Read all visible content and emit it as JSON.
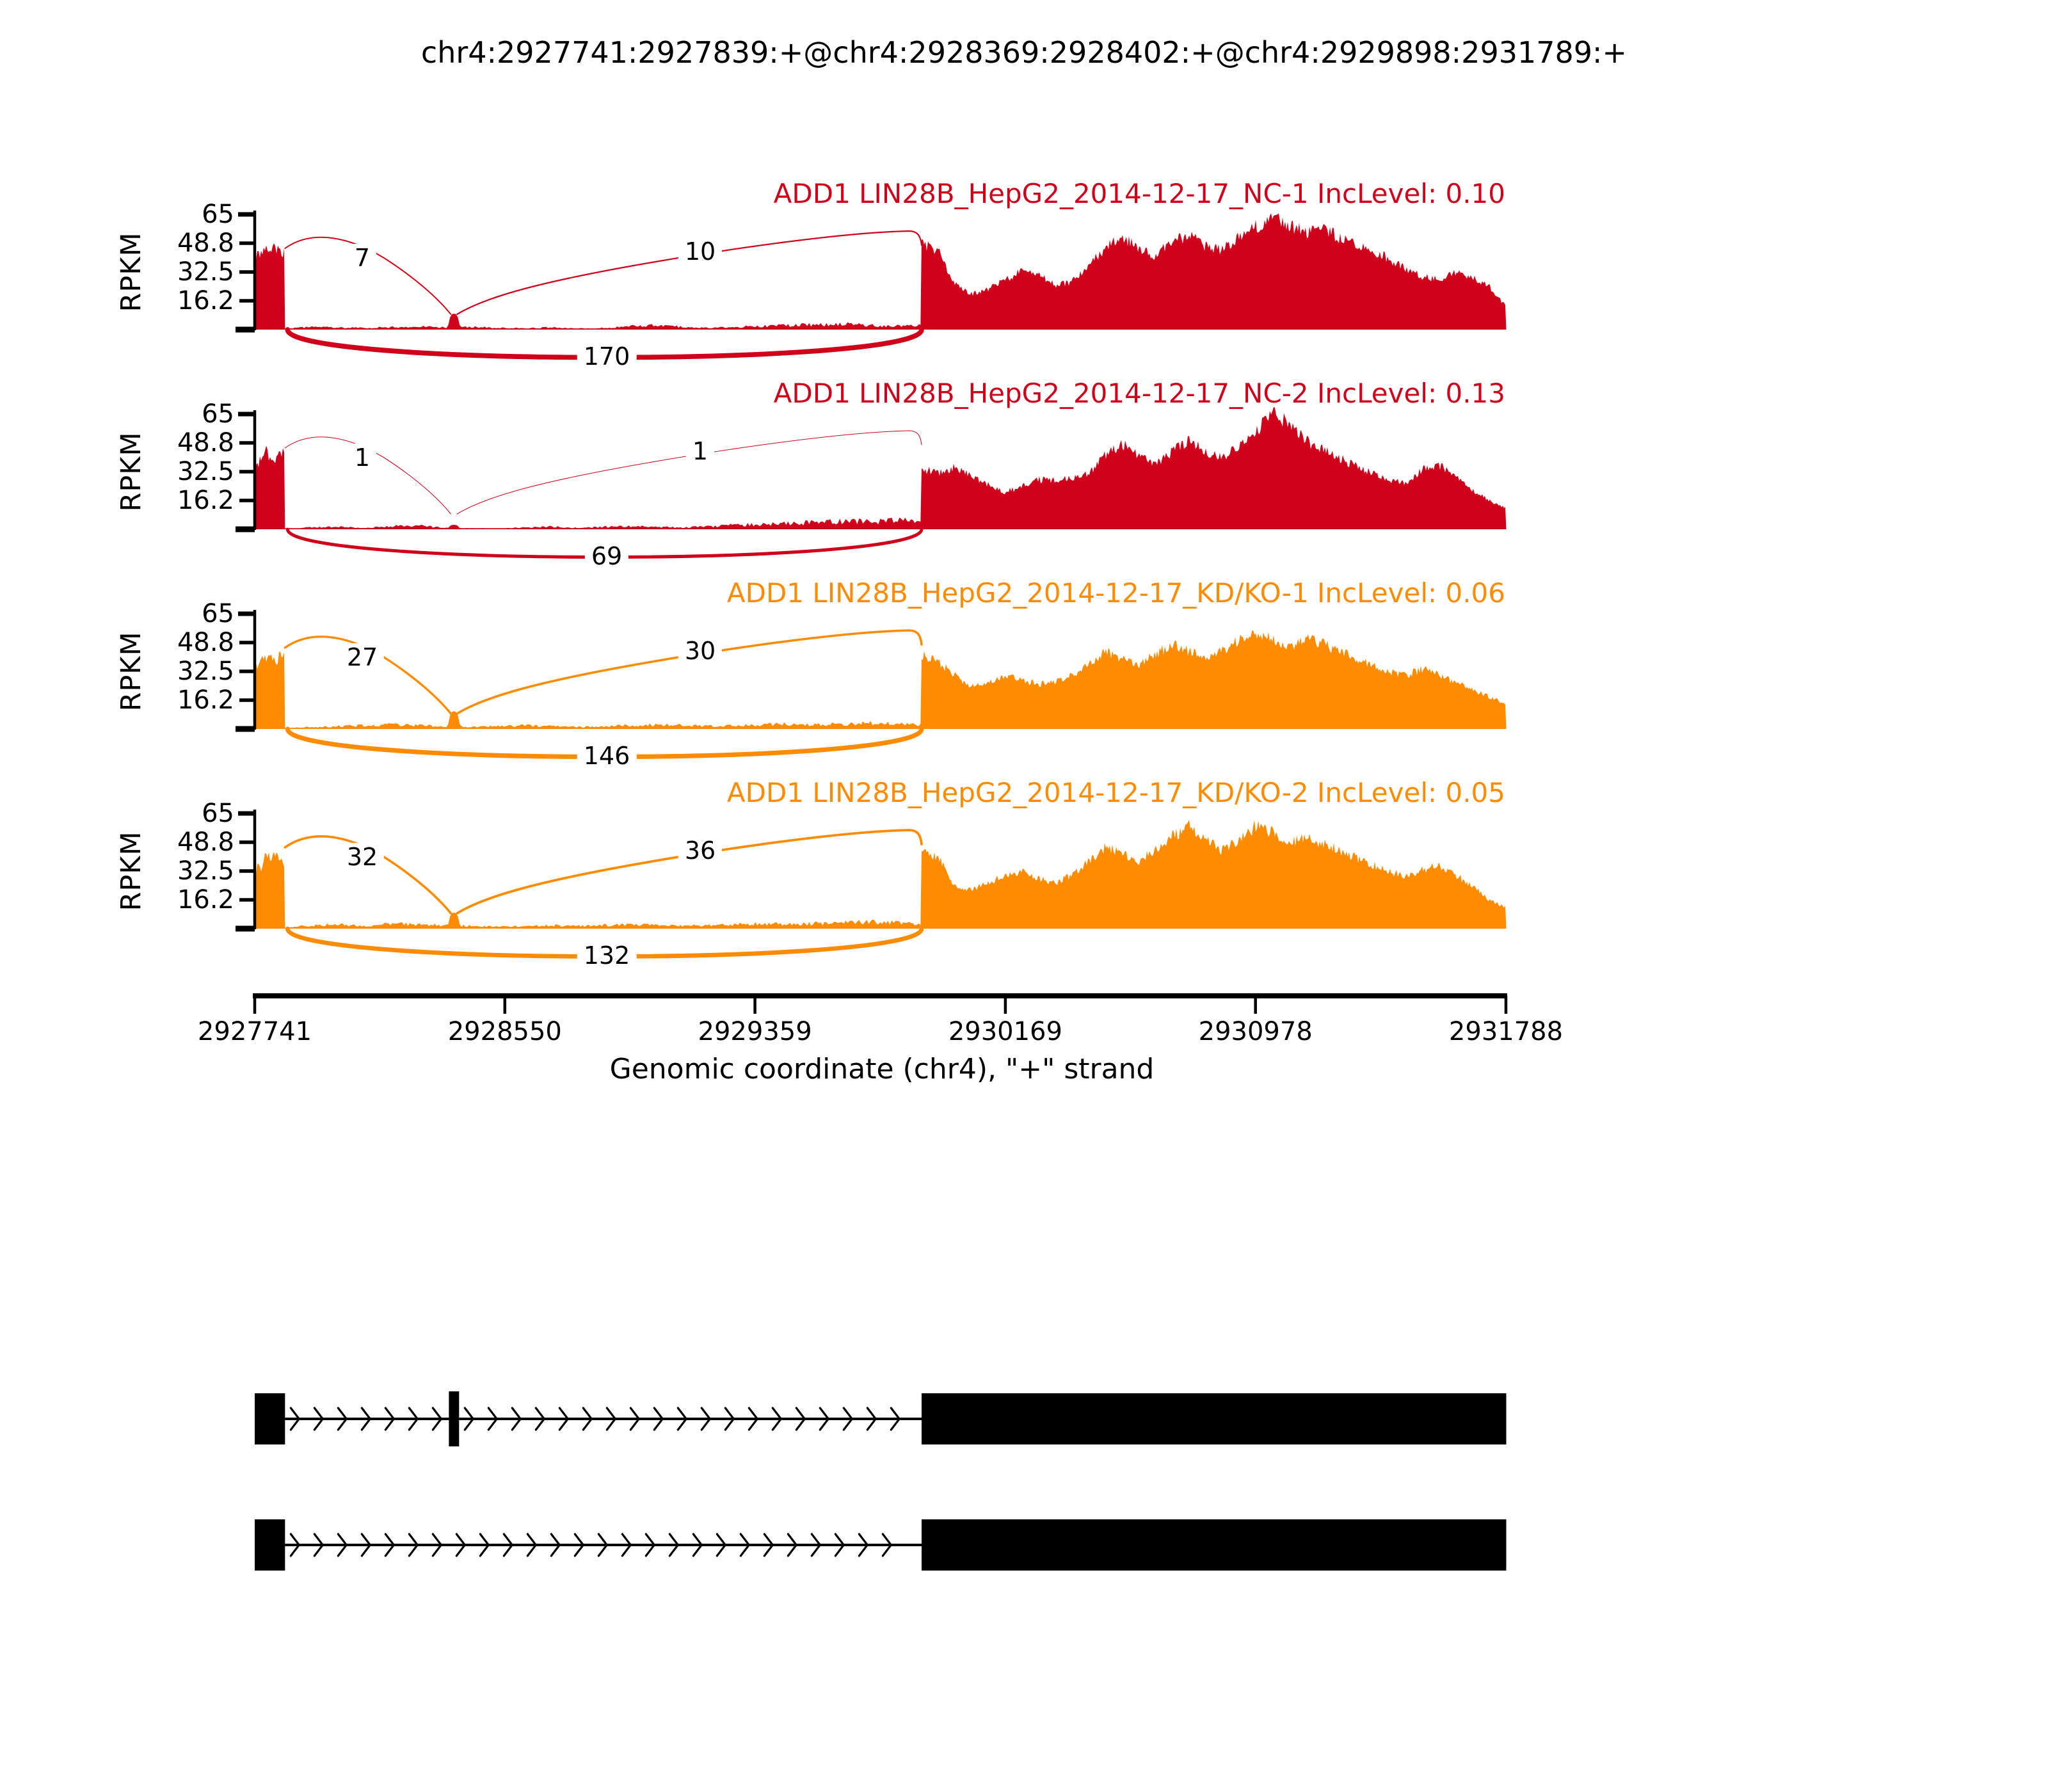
{
  "chart_data": {
    "type": "area",
    "title": "chr4:2927741:2927839:+@chr4:2928369:2928402:+@chr4:2929898:2931789:+",
    "xlabel": "Genomic coordinate (chr4), \"+\" strand",
    "ylabel": "RPKM",
    "ylim": [
      0,
      65
    ],
    "y_tick_labels": [
      "65",
      "48.8",
      "32.5",
      "16.2"
    ],
    "xlim": [
      2927741,
      2931788
    ],
    "x_ticks": [
      2927741,
      2928550,
      2929359,
      2930169,
      2930978,
      2931788
    ],
    "x_tick_labels": [
      "2927741",
      "2928550",
      "2929359",
      "2930169",
      "2930978",
      "2931788"
    ],
    "strand": "+",
    "exons": {
      "upstream": [
        2927741,
        2927839
      ],
      "skipped": [
        2928369,
        2928402
      ],
      "downstream": [
        2929898,
        2931789
      ]
    },
    "tracks": [
      {
        "label": "ADD1 LIN28B_HepG2_2014-12-17_NC-1 IncLevel: 0.10",
        "inc_level": "0.10",
        "color": "#D0021B",
        "junction_counts": [
          7,
          10,
          170
        ],
        "exon1_profile": [
          40,
          45,
          42,
          46,
          44,
          47,
          45,
          46,
          43,
          45
        ],
        "mid_peak": 9,
        "intron_noise": [
          0.6,
          1.4,
          1.2,
          0.9,
          1.4,
          1.7,
          1.2,
          1.5,
          1.0,
          0.8,
          1.2,
          0.6,
          0.9,
          1.9,
          2.3,
          1.5,
          1.1,
          1.5,
          2.0,
          2.4,
          2.8,
          3.2,
          2.4,
          2.0,
          2.3
        ],
        "exon3_profile": [
          48,
          44,
          26,
          20,
          23,
          28,
          33,
          31,
          25,
          27,
          36,
          46,
          52,
          46,
          41,
          50,
          53,
          47,
          45,
          52,
          58,
          63,
          59,
          55,
          57,
          52,
          49,
          45,
          40,
          34,
          30,
          28,
          32,
          30,
          24,
          13
        ]
      },
      {
        "label": "ADD1 LIN28B_HepG2_2014-12-17_NC-2 IncLevel: 0.13",
        "inc_level": "0.13",
        "color": "#D0021B",
        "junction_counts": [
          1,
          1,
          69
        ],
        "exon1_profile": [
          34,
          37,
          40,
          46,
          42,
          38,
          36,
          44,
          41,
          47
        ],
        "mid_peak": 2.5,
        "intron_noise": [
          0.4,
          1.0,
          1.4,
          0.6,
          1.8,
          2.0,
          1.0,
          0.5,
          0.4,
          1.0,
          1.5,
          0.8,
          1.4,
          1.8,
          1.4,
          1.0,
          1.6,
          2.4,
          2.8,
          3.2,
          3.8,
          4.6,
          4.2,
          5.2,
          3.8
        ],
        "exon3_profile": [
          34,
          32,
          35,
          30,
          25,
          21,
          24,
          28,
          28,
          29,
          31,
          42,
          48,
          42,
          36,
          44,
          50,
          44,
          40,
          48,
          55,
          65,
          60,
          50,
          45,
          40,
          36,
          32,
          28,
          26,
          34,
          36,
          30,
          22,
          16,
          12
        ]
      },
      {
        "label": "ADD1 LIN28B_HepG2_2014-12-17_KD/KO-1 IncLevel: 0.06",
        "inc_level": "0.06",
        "color": "#FF8C00",
        "junction_counts": [
          27,
          30,
          146
        ],
        "exon1_profile": [
          36,
          34,
          38,
          41,
          40,
          42,
          37,
          40,
          42,
          40
        ],
        "mid_peak": 10,
        "intron_noise": [
          0.6,
          1.1,
          1.5,
          2.0,
          2.4,
          2.0,
          1.5,
          1.1,
          1.5,
          2.0,
          1.5,
          1.1,
          1.5,
          2.0,
          2.4,
          2.0,
          1.6,
          2.0,
          2.4,
          2.8,
          2.5,
          2.9,
          3.3,
          2.9,
          2.5
        ],
        "exon3_profile": [
          42,
          38,
          30,
          24,
          26,
          30,
          28,
          25,
          27,
          30,
          36,
          44,
          40,
          36,
          42,
          48,
          44,
          40,
          44,
          50,
          55,
          50,
          46,
          52,
          48,
          44,
          40,
          36,
          32,
          30,
          34,
          30,
          26,
          22,
          18,
          14
        ]
      },
      {
        "label": "ADD1 LIN28B_HepG2_2014-12-17_KD/KO-2 IncLevel: 0.05",
        "inc_level": "0.05",
        "color": "#FF8C00",
        "junction_counts": [
          32,
          36,
          132
        ],
        "exon1_profile": [
          31,
          36,
          33,
          40,
          42,
          38,
          43,
          40,
          37,
          35
        ],
        "mid_peak": 9,
        "intron_noise": [
          0.6,
          1.9,
          2.3,
          1.5,
          2.8,
          2.4,
          1.9,
          1.5,
          1.1,
          1.5,
          1.9,
          1.5,
          1.9,
          2.3,
          1.9,
          1.6,
          2.0,
          2.4,
          2.8,
          2.4,
          2.9,
          3.3,
          3.8,
          3.3,
          2.9
        ],
        "exon3_profile": [
          45,
          40,
          24,
          22,
          26,
          30,
          32,
          28,
          26,
          30,
          38,
          46,
          42,
          38,
          44,
          52,
          58,
          50,
          44,
          50,
          58,
          54,
          48,
          52,
          48,
          44,
          40,
          36,
          32,
          30,
          33,
          36,
          30,
          24,
          16,
          12
        ]
      }
    ],
    "isoforms": [
      {
        "exons": [
          [
            2927741,
            2927839
          ],
          [
            2928369,
            2928402
          ],
          [
            2929898,
            2931789
          ]
        ]
      },
      {
        "exons": [
          [
            2927741,
            2927839
          ],
          [
            2929898,
            2931789
          ]
        ]
      }
    ]
  }
}
